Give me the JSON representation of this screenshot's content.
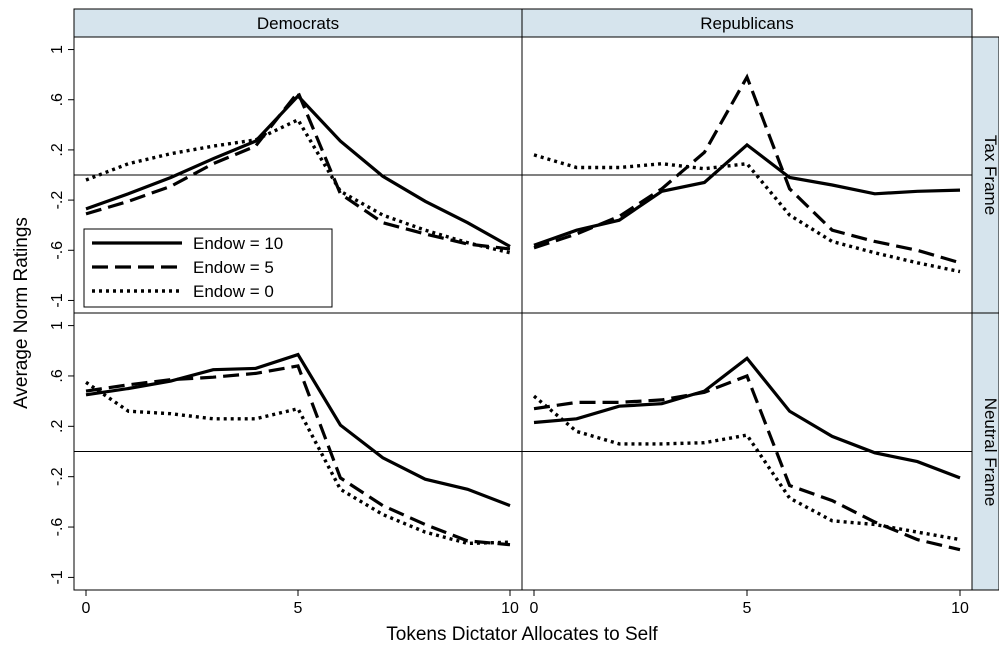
{
  "chart_data": {
    "type": "line",
    "xlabel": "Tokens Dictator Allocates to Self",
    "ylabel": "Average Norm Ratings",
    "columns": [
      "Democrats",
      "Republicans"
    ],
    "rows": [
      "Tax Frame",
      "Neutral Frame"
    ],
    "x": [
      0,
      1,
      2,
      3,
      4,
      5,
      6,
      7,
      8,
      9,
      10
    ],
    "xlim": [
      0,
      10
    ],
    "ylim": [
      -1.1,
      1.1
    ],
    "xticks": [
      0,
      5,
      10
    ],
    "yticks": [
      -1,
      -0.6,
      -0.2,
      0.2,
      0.6,
      1
    ],
    "ytick_labels": [
      "-1",
      "-.6",
      "-.2",
      ".2",
      ".6",
      "1"
    ],
    "reference_line_y": 0,
    "legend": {
      "placement": "bottom-left of top-left panel",
      "entries": [
        {
          "label": "Endow = 10",
          "style": "solid"
        },
        {
          "label": "Endow = 5",
          "style": "dashed"
        },
        {
          "label": "Endow = 0",
          "style": "dotted"
        }
      ]
    },
    "panels": [
      {
        "column": "Democrats",
        "row": "Tax Frame",
        "series": [
          {
            "name": "Endow = 10",
            "values": [
              -0.27,
              -0.15,
              -0.02,
              0.13,
              0.27,
              0.63,
              0.27,
              -0.01,
              -0.21,
              -0.38,
              -0.57
            ]
          },
          {
            "name": "Endow = 5",
            "values": [
              -0.31,
              -0.21,
              -0.09,
              0.09,
              0.23,
              0.66,
              -0.15,
              -0.38,
              -0.47,
              -0.55,
              -0.59
            ]
          },
          {
            "name": "Endow = 0",
            "values": [
              -0.04,
              0.09,
              0.17,
              0.23,
              0.28,
              0.44,
              -0.13,
              -0.32,
              -0.44,
              -0.54,
              -0.62
            ]
          }
        ]
      },
      {
        "column": "Republicans",
        "row": "Tax Frame",
        "series": [
          {
            "name": "Endow = 10",
            "values": [
              -0.56,
              -0.44,
              -0.36,
              -0.13,
              -0.06,
              0.24,
              -0.02,
              -0.08,
              -0.15,
              -0.13,
              -0.12
            ]
          },
          {
            "name": "Endow = 5",
            "values": [
              -0.58,
              -0.47,
              -0.33,
              -0.11,
              0.18,
              0.78,
              -0.11,
              -0.44,
              -0.53,
              -0.6,
              -0.7
            ]
          },
          {
            "name": "Endow = 0",
            "values": [
              0.16,
              0.06,
              0.06,
              0.09,
              0.05,
              0.09,
              -0.32,
              -0.53,
              -0.62,
              -0.7,
              -0.77
            ]
          }
        ]
      },
      {
        "column": "Democrats",
        "row": "Neutral Frame",
        "series": [
          {
            "name": "Endow = 10",
            "values": [
              0.45,
              0.5,
              0.56,
              0.65,
              0.66,
              0.77,
              0.21,
              -0.05,
              -0.22,
              -0.3,
              -0.43
            ]
          },
          {
            "name": "Endow = 5",
            "values": [
              0.48,
              0.53,
              0.57,
              0.59,
              0.62,
              0.68,
              -0.21,
              -0.43,
              -0.58,
              -0.71,
              -0.74
            ]
          },
          {
            "name": "Endow = 0",
            "values": [
              0.55,
              0.32,
              0.3,
              0.26,
              0.26,
              0.34,
              -0.3,
              -0.5,
              -0.64,
              -0.73,
              -0.72
            ]
          }
        ]
      },
      {
        "column": "Republicans",
        "row": "Neutral Frame",
        "series": [
          {
            "name": "Endow = 10",
            "values": [
              0.23,
              0.26,
              0.36,
              0.38,
              0.48,
              0.74,
              0.32,
              0.12,
              -0.01,
              -0.08,
              -0.21
            ]
          },
          {
            "name": "Endow = 5",
            "values": [
              0.34,
              0.39,
              0.39,
              0.41,
              0.47,
              0.6,
              -0.27,
              -0.39,
              -0.56,
              -0.7,
              -0.78
            ]
          },
          {
            "name": "Endow = 0",
            "values": [
              0.44,
              0.16,
              0.06,
              0.06,
              0.07,
              0.13,
              -0.37,
              -0.55,
              -0.58,
              -0.64,
              -0.7
            ]
          }
        ]
      }
    ]
  }
}
